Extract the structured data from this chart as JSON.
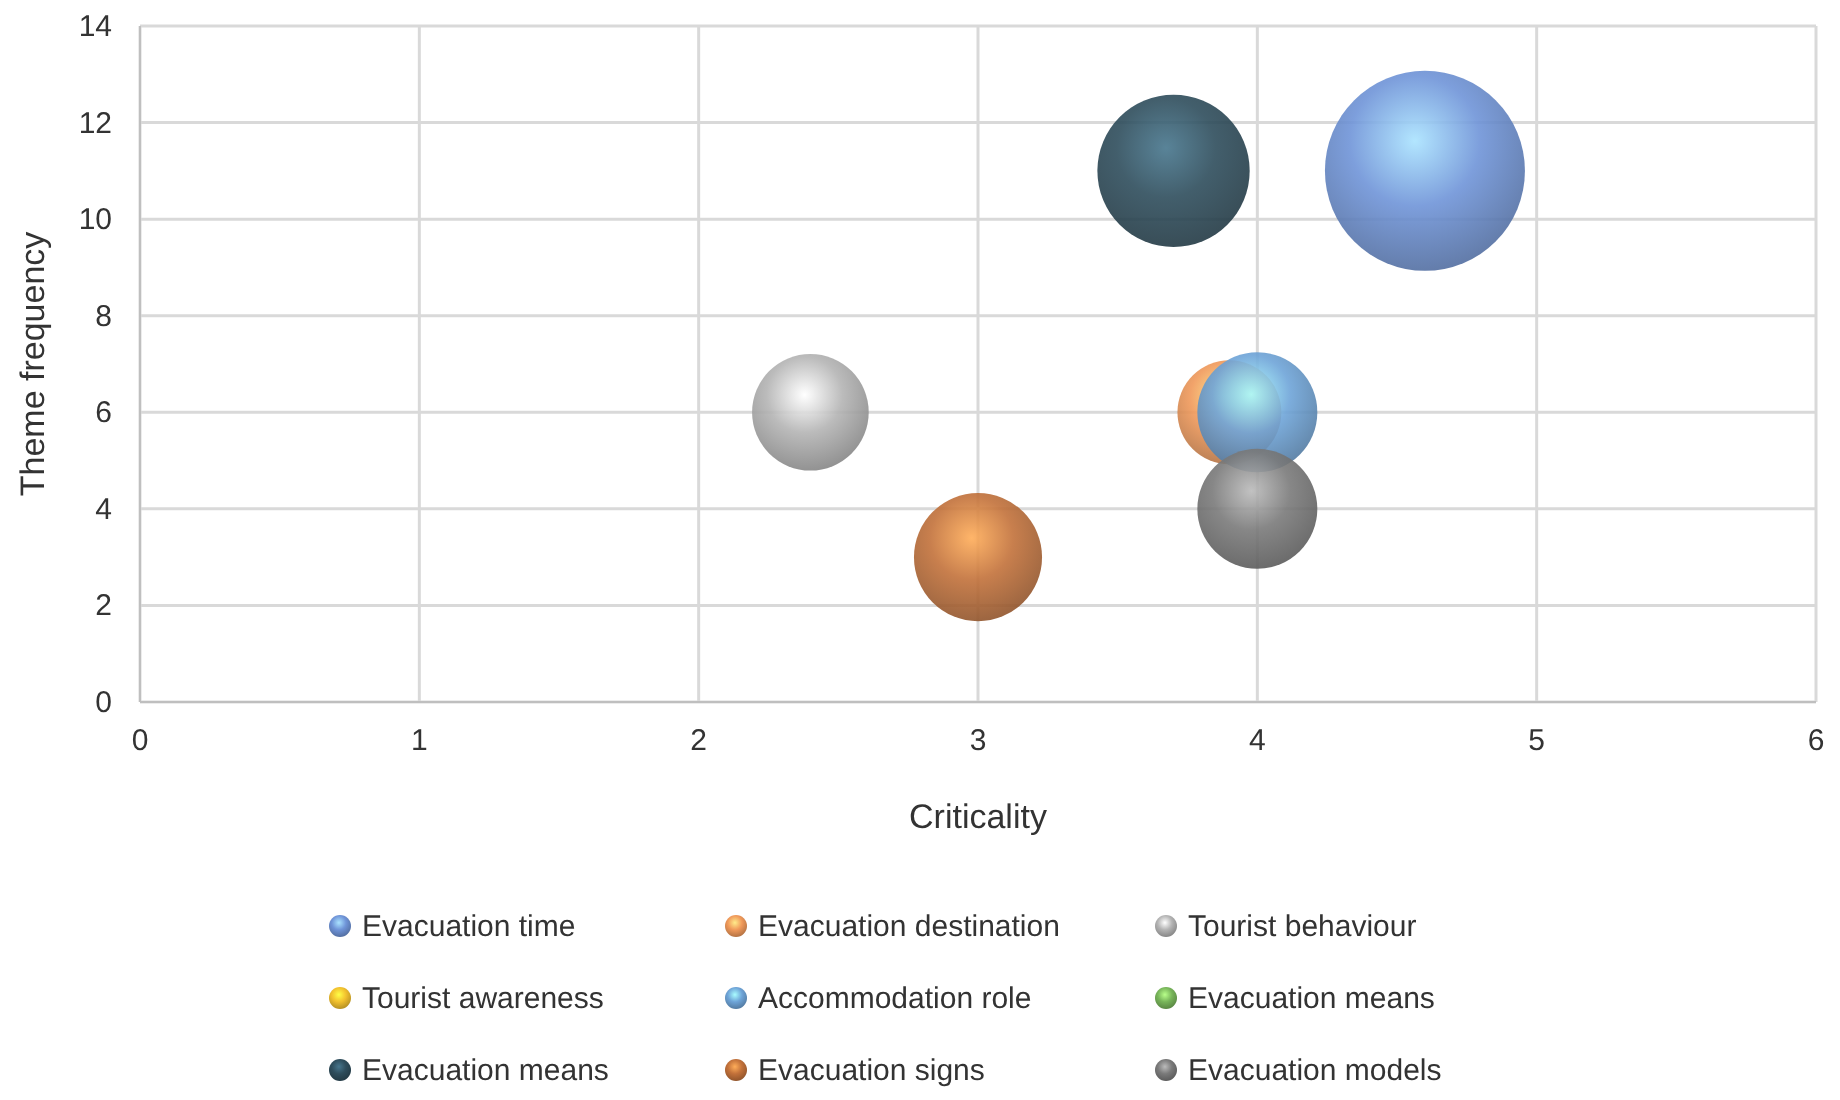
{
  "chart_data": {
    "type": "bubble",
    "xlabel": "Criticality",
    "ylabel": "Theme frequency",
    "xlim": [
      0,
      6
    ],
    "xticks": [
      0,
      1,
      2,
      3,
      4,
      5,
      6
    ],
    "ylim": [
      0,
      14
    ],
    "yticks": [
      0,
      2,
      4,
      6,
      8,
      10,
      12,
      14
    ],
    "grid": true,
    "legend": "bottom",
    "series": [
      {
        "name": "Evacuation time",
        "color": "#6f94d8",
        "x": [
          4.6
        ],
        "values": [
          11
        ],
        "sizes": [
          1
        ]
      },
      {
        "name": "Evacuation destination",
        "color": "#f0995a",
        "x": [
          3.9
        ],
        "values": [
          6
        ],
        "sizes": [
          0.27
        ]
      },
      {
        "name": "Tourist behaviour",
        "color": "#b4b4b4",
        "x": [
          2.4
        ],
        "values": [
          6
        ],
        "sizes": [
          0.34
        ]
      },
      {
        "name": "Tourist awareness",
        "color": "#f2c12e",
        "x": [
          null
        ],
        "values": [
          null
        ],
        "sizes": [
          null
        ]
      },
      {
        "name": "Accommodation role",
        "color": "#6ea4d8",
        "x": [
          4
        ],
        "values": [
          6
        ],
        "sizes": [
          0.36
        ]
      },
      {
        "name": "Evacuation means",
        "color": "#78b55a",
        "x": [
          null
        ],
        "values": [
          null
        ],
        "sizes": [
          null
        ]
      },
      {
        "name": "Evacuation means",
        "color": "#2e4d5c",
        "x": [
          3.7
        ],
        "values": [
          11
        ],
        "sizes": [
          0.58
        ]
      },
      {
        "name": "Evacuation signs",
        "color": "#c2713a",
        "x": [
          3
        ],
        "values": [
          3
        ],
        "sizes": [
          0.41
        ]
      },
      {
        "name": "Evacuation models",
        "color": "#7a7a7a",
        "x": [
          4
        ],
        "values": [
          4
        ],
        "sizes": [
          0.36
        ]
      }
    ]
  }
}
